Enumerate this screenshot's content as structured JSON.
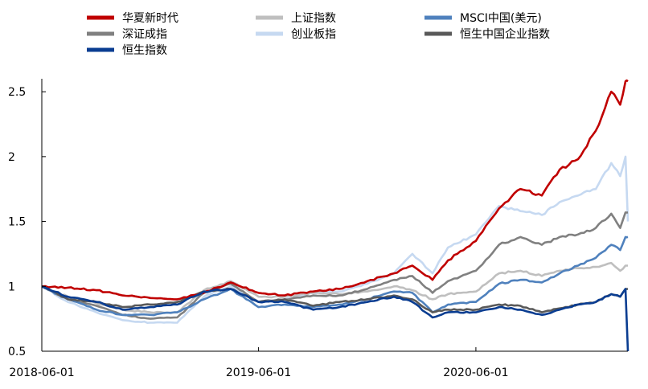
{
  "chart_data": {
    "type": "line",
    "xlabel": "",
    "ylabel": "",
    "ylim": [
      0.5,
      2.6
    ],
    "yticks": [
      "0.5",
      "1",
      "1.5",
      "2",
      "2.5"
    ],
    "xticks": [
      "2018-06-01",
      "2019-06-01",
      "2020-06-01"
    ],
    "x_start": "2018-06-01",
    "x_end": "2021-02-12",
    "grid": false,
    "legend_position": "top",
    "series": [
      {
        "name": "华夏新时代",
        "color": "#c00000",
        "x": [
          "2018-06-01",
          "2018-07-15",
          "2018-09-01",
          "2018-10-15",
          "2018-12-01",
          "2019-01-15",
          "2019-03-01",
          "2019-04-15",
          "2019-06-01",
          "2019-07-15",
          "2019-09-01",
          "2019-10-15",
          "2019-12-01",
          "2020-01-15",
          "2020-02-15",
          "2020-03-20",
          "2020-04-15",
          "2020-06-01",
          "2020-07-10",
          "2020-08-15",
          "2020-09-20",
          "2020-10-20",
          "2020-11-20",
          "2020-12-20",
          "2021-01-15",
          "2021-01-30",
          "2021-02-08",
          "2021-02-12"
        ],
        "values": [
          1.0,
          0.99,
          0.97,
          0.93,
          0.91,
          0.9,
          0.95,
          1.03,
          0.95,
          0.93,
          0.96,
          0.98,
          1.04,
          1.1,
          1.16,
          1.05,
          1.2,
          1.35,
          1.6,
          1.75,
          1.7,
          1.9,
          1.98,
          2.2,
          2.5,
          2.4,
          2.58,
          2.58
        ]
      },
      {
        "name": "上证指数",
        "color": "#bfbfbf",
        "x": [
          "2018-06-01",
          "2018-07-15",
          "2018-09-01",
          "2018-10-15",
          "2018-12-01",
          "2019-01-15",
          "2019-03-01",
          "2019-04-15",
          "2019-06-01",
          "2019-07-15",
          "2019-09-01",
          "2019-10-15",
          "2019-12-01",
          "2020-01-15",
          "2020-02-15",
          "2020-03-20",
          "2020-04-15",
          "2020-06-01",
          "2020-07-10",
          "2020-08-15",
          "2020-09-20",
          "2020-10-20",
          "2020-11-20",
          "2020-12-20",
          "2021-01-15",
          "2021-01-30",
          "2021-02-08",
          "2021-02-12"
        ],
        "values": [
          1.0,
          0.92,
          0.87,
          0.82,
          0.8,
          0.8,
          0.97,
          1.04,
          0.92,
          0.92,
          0.95,
          0.94,
          0.96,
          1.0,
          0.97,
          0.9,
          0.94,
          0.96,
          1.1,
          1.12,
          1.08,
          1.12,
          1.14,
          1.15,
          1.18,
          1.12,
          1.16,
          1.16
        ]
      },
      {
        "name": "MSCI中国(美元)",
        "color": "#4f81bd",
        "x": [
          "2018-06-01",
          "2018-07-15",
          "2018-09-01",
          "2018-10-15",
          "2018-12-01",
          "2019-01-15",
          "2019-03-01",
          "2019-04-15",
          "2019-06-01",
          "2019-07-15",
          "2019-09-01",
          "2019-10-15",
          "2019-12-01",
          "2020-01-15",
          "2020-02-15",
          "2020-03-20",
          "2020-04-15",
          "2020-06-01",
          "2020-07-10",
          "2020-08-15",
          "2020-09-20",
          "2020-10-20",
          "2020-11-20",
          "2020-12-20",
          "2021-01-15",
          "2021-01-30",
          "2021-02-08",
          "2021-02-12"
        ],
        "values": [
          1.0,
          0.9,
          0.82,
          0.78,
          0.78,
          0.8,
          0.9,
          0.98,
          0.84,
          0.86,
          0.84,
          0.86,
          0.9,
          0.96,
          0.95,
          0.8,
          0.86,
          0.88,
          1.02,
          1.05,
          1.03,
          1.1,
          1.16,
          1.22,
          1.32,
          1.28,
          1.38,
          1.38
        ]
      },
      {
        "name": "深证成指",
        "color": "#808080",
        "x": [
          "2018-06-01",
          "2018-07-15",
          "2018-09-01",
          "2018-10-15",
          "2018-12-01",
          "2019-01-15",
          "2019-03-01",
          "2019-04-15",
          "2019-06-01",
          "2019-07-15",
          "2019-09-01",
          "2019-10-15",
          "2019-12-01",
          "2020-01-15",
          "2020-02-15",
          "2020-03-20",
          "2020-04-15",
          "2020-06-01",
          "2020-07-10",
          "2020-08-15",
          "2020-09-20",
          "2020-10-20",
          "2020-11-20",
          "2020-12-20",
          "2021-01-15",
          "2021-01-30",
          "2021-02-08",
          "2021-02-12"
        ],
        "values": [
          1.0,
          0.9,
          0.85,
          0.78,
          0.75,
          0.76,
          0.95,
          1.02,
          0.88,
          0.9,
          0.93,
          0.93,
          0.98,
          1.05,
          1.08,
          0.95,
          1.04,
          1.12,
          1.32,
          1.38,
          1.32,
          1.38,
          1.4,
          1.45,
          1.56,
          1.45,
          1.57,
          1.57
        ]
      },
      {
        "name": "创业板指",
        "color": "#c6d9f1",
        "x": [
          "2018-06-01",
          "2018-07-15",
          "2018-09-01",
          "2018-10-15",
          "2018-12-01",
          "2019-01-15",
          "2019-03-01",
          "2019-04-15",
          "2019-06-01",
          "2019-07-15",
          "2019-09-01",
          "2019-10-15",
          "2019-12-01",
          "2020-01-15",
          "2020-02-15",
          "2020-03-20",
          "2020-04-15",
          "2020-06-01",
          "2020-07-10",
          "2020-08-15",
          "2020-09-20",
          "2020-10-20",
          "2020-11-20",
          "2020-12-20",
          "2021-01-15",
          "2021-01-30",
          "2021-02-08",
          "2021-02-12"
        ],
        "values": [
          1.0,
          0.88,
          0.8,
          0.74,
          0.72,
          0.72,
          0.92,
          1.0,
          0.88,
          0.9,
          0.95,
          0.96,
          1.02,
          1.1,
          1.25,
          1.1,
          1.3,
          1.4,
          1.62,
          1.58,
          1.55,
          1.65,
          1.7,
          1.75,
          1.95,
          1.85,
          2.0,
          1.5
        ]
      },
      {
        "name": "恒生中国企业指数",
        "color": "#595959",
        "x": [
          "2018-06-01",
          "2018-07-15",
          "2018-09-01",
          "2018-10-15",
          "2018-12-01",
          "2019-01-15",
          "2019-03-01",
          "2019-04-15",
          "2019-06-01",
          "2019-07-15",
          "2019-09-01",
          "2019-10-15",
          "2019-12-01",
          "2020-01-15",
          "2020-02-15",
          "2020-03-20",
          "2020-04-15",
          "2020-06-01",
          "2020-07-10",
          "2020-08-15",
          "2020-09-20",
          "2020-10-20",
          "2020-11-20",
          "2020-12-20",
          "2021-01-15",
          "2021-01-30",
          "2021-02-08",
          "2021-02-12"
        ],
        "values": [
          1.0,
          0.9,
          0.88,
          0.84,
          0.86,
          0.88,
          0.96,
          0.98,
          0.88,
          0.9,
          0.85,
          0.88,
          0.9,
          0.93,
          0.9,
          0.8,
          0.82,
          0.82,
          0.86,
          0.85,
          0.8,
          0.83,
          0.86,
          0.88,
          0.94,
          0.92,
          0.98,
          0.98
        ]
      },
      {
        "name": "恒生指数",
        "color": "#0a3d91",
        "x": [
          "2018-06-01",
          "2018-07-15",
          "2018-09-01",
          "2018-10-15",
          "2018-12-01",
          "2019-01-15",
          "2019-03-01",
          "2019-04-15",
          "2019-06-01",
          "2019-07-15",
          "2019-09-01",
          "2019-10-15",
          "2019-12-01",
          "2020-01-15",
          "2020-02-15",
          "2020-03-20",
          "2020-04-15",
          "2020-06-01",
          "2020-07-10",
          "2020-08-15",
          "2020-09-20",
          "2020-10-20",
          "2020-11-20",
          "2020-12-20",
          "2021-01-15",
          "2021-01-30",
          "2021-02-08",
          "2021-02-12"
        ],
        "values": [
          1.0,
          0.92,
          0.88,
          0.82,
          0.84,
          0.86,
          0.96,
          0.98,
          0.88,
          0.88,
          0.82,
          0.84,
          0.88,
          0.92,
          0.88,
          0.76,
          0.8,
          0.8,
          0.84,
          0.82,
          0.78,
          0.82,
          0.86,
          0.88,
          0.94,
          0.92,
          0.98,
          0.5
        ]
      }
    ]
  }
}
